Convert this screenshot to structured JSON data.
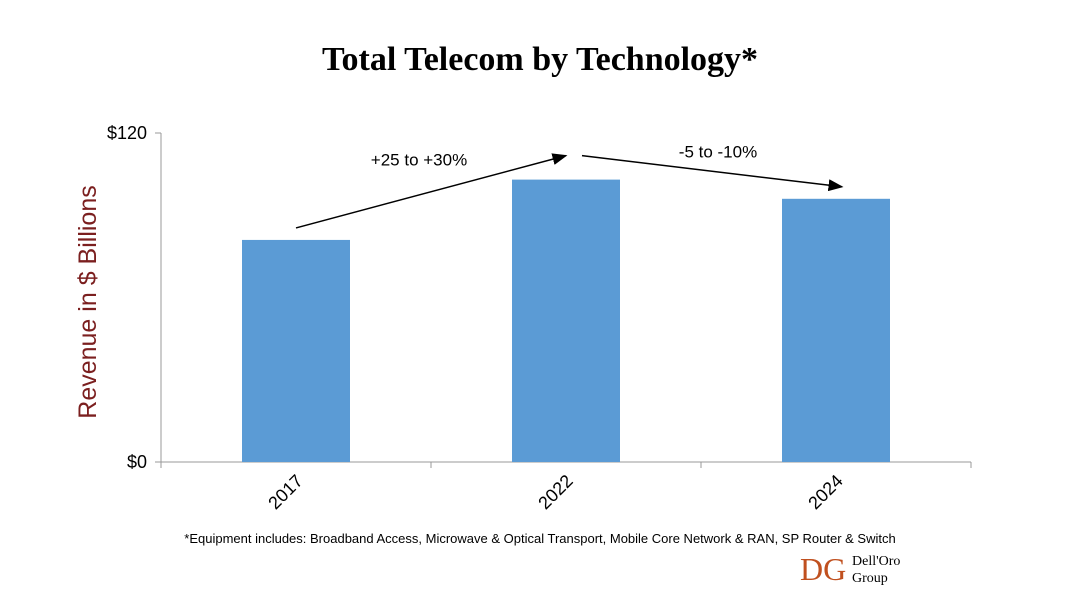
{
  "chart_data": {
    "type": "bar",
    "title": "Total Telecom by Technology*",
    "ylabel": "Revenue in $ Billions",
    "xlabel": "",
    "categories": [
      "2017",
      "2022",
      "2024"
    ],
    "values": [
      81,
      103,
      96
    ],
    "ylim": [
      0,
      120
    ],
    "yticks": [
      {
        "value": 0,
        "label": "$0"
      },
      {
        "value": 120,
        "label": "$120"
      }
    ],
    "grid": false,
    "bar_color": "#5B9BD5",
    "ylabel_color": "#7B1F1F",
    "annotations": [
      {
        "text": "+25 to +30%",
        "from": "2017",
        "to": "2022"
      },
      {
        "text": "-5 to -10%",
        "from": "2022",
        "to": "2024"
      }
    ],
    "footnote": "*Equipment includes: Broadband Access, Microwave & Optical Transport, Mobile Core Network & RAN, SP Router & Switch"
  },
  "logo": {
    "text_line1": "Dell'Oro",
    "text_line2": "Group",
    "color": "#C0501F"
  }
}
